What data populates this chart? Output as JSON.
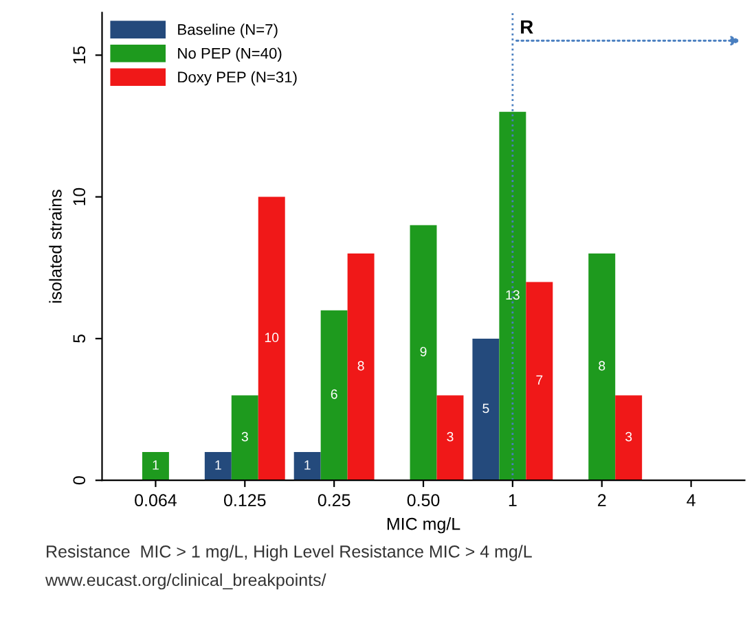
{
  "chart_data": {
    "type": "bar",
    "xlabel": "MIC mg/L",
    "ylabel": "isolated strains",
    "categories": [
      "0.064",
      "0.125",
      "0.25",
      "0.50",
      "1",
      "2",
      "4"
    ],
    "series": [
      {
        "name": "Baseline (N=7)",
        "color": "#244a7c",
        "values": [
          null,
          1,
          1,
          null,
          5,
          null,
          null
        ],
        "value_labels": [
          null,
          "1",
          "1",
          null,
          "5",
          null,
          null
        ]
      },
      {
        "name": "No PEP (N=40)",
        "color": "#1e9a1e",
        "values": [
          1,
          3,
          6,
          9,
          13,
          8,
          null
        ],
        "value_labels": [
          "1",
          "3",
          "6",
          "9",
          "13",
          "8",
          null
        ]
      },
      {
        "name": "Doxy PEP (N=31)",
        "color": "#f01818",
        "values": [
          null,
          10,
          8,
          3,
          7,
          3,
          null
        ],
        "value_labels": [
          null,
          "10",
          "8",
          "3",
          "7",
          "3",
          null
        ]
      }
    ],
    "ylim": [
      0,
      16.5
    ],
    "yticks": [
      0,
      5,
      10,
      15
    ],
    "grid": false,
    "legend": "top left",
    "ref_lines": [
      {
        "axis": "x",
        "value": "1",
        "label": "R",
        "color": "#4a7fc0",
        "line_style": "dotted"
      }
    ],
    "annotations": [
      "Resistance  MIC > 1 mg/L, High Level Resistance MIC > 4 mg/L",
      "www.eucast.org/clinical_breakpoints/"
    ]
  }
}
